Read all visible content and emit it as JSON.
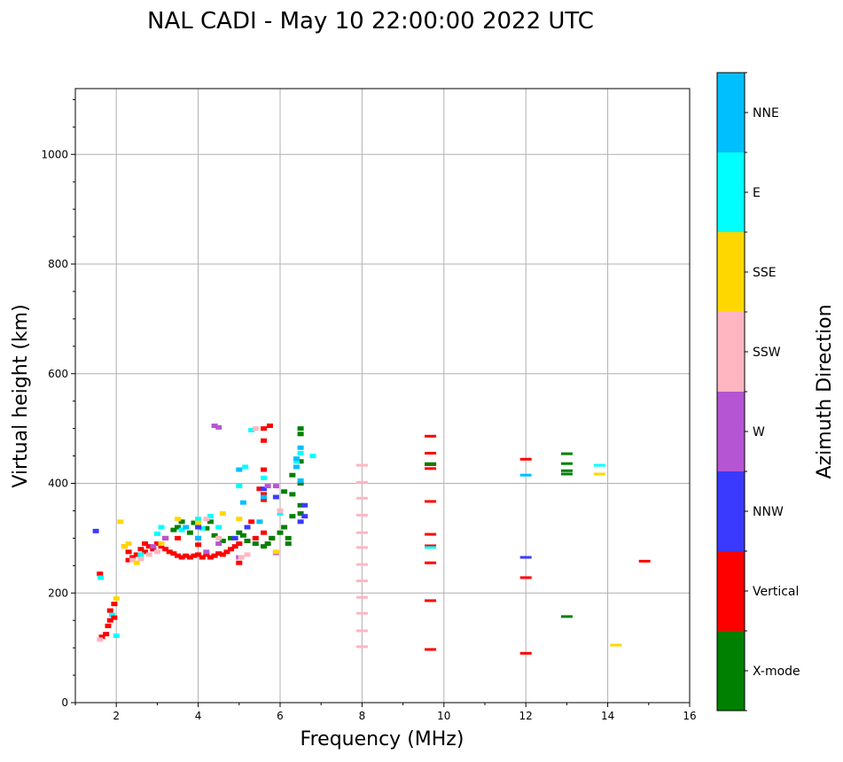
{
  "chart_data": {
    "type": "scatter",
    "title": "NAL CADI - May 10 22:00:00 2022 UTC",
    "xlabel": "Frequency (MHz)",
    "ylabel": "Virtual height (km)",
    "xlim": [
      1,
      16
    ],
    "ylim": [
      0,
      1120
    ],
    "xticks": [
      2,
      4,
      6,
      8,
      10,
      12,
      14,
      16
    ],
    "yticks": [
      0,
      200,
      400,
      600,
      800,
      1000
    ],
    "grid": true,
    "colorbar": {
      "label": "Azimuth Direction",
      "categories": [
        "X-mode",
        "Vertical",
        "NNW",
        "W",
        "SSW",
        "SSE",
        "E",
        "NNE"
      ],
      "colors": [
        "#008000",
        "#ff0000",
        "#3a3aff",
        "#b655d3",
        "#ffb6c1",
        "#ffd700",
        "#00ffff",
        "#00bfff"
      ]
    },
    "points": [
      [
        1.5,
        313,
        2
      ],
      [
        1.6,
        235,
        1
      ],
      [
        1.62,
        228,
        6
      ],
      [
        1.65,
        120,
        1
      ],
      [
        1.6,
        115,
        4
      ],
      [
        1.75,
        125,
        1
      ],
      [
        1.8,
        140,
        1
      ],
      [
        1.85,
        150,
        1
      ],
      [
        1.85,
        168,
        1
      ],
      [
        1.9,
        160,
        6
      ],
      [
        1.95,
        180,
        1
      ],
      [
        1.95,
        155,
        1
      ],
      [
        2.0,
        190,
        5
      ],
      [
        2.0,
        122,
        6
      ],
      [
        2.1,
        330,
        5
      ],
      [
        2.2,
        285,
        1
      ],
      [
        2.3,
        275,
        1
      ],
      [
        2.4,
        265,
        1
      ],
      [
        2.5,
        270,
        1
      ],
      [
        2.6,
        280,
        1
      ],
      [
        2.7,
        275,
        1
      ],
      [
        2.8,
        285,
        1
      ],
      [
        2.9,
        280,
        1
      ],
      [
        3.0,
        290,
        1
      ],
      [
        3.1,
        285,
        1
      ],
      [
        3.2,
        280,
        1
      ],
      [
        3.3,
        275,
        1
      ],
      [
        3.4,
        272,
        1
      ],
      [
        3.5,
        268,
        1
      ],
      [
        3.6,
        265,
        1
      ],
      [
        3.7,
        268,
        1
      ],
      [
        3.8,
        265,
        1
      ],
      [
        3.9,
        268,
        1
      ],
      [
        4.0,
        270,
        1
      ],
      [
        4.1,
        265,
        1
      ],
      [
        4.2,
        270,
        1
      ],
      [
        4.3,
        265,
        1
      ],
      [
        4.4,
        268,
        1
      ],
      [
        4.5,
        272,
        1
      ],
      [
        4.6,
        270,
        1
      ],
      [
        4.7,
        275,
        1
      ],
      [
        4.8,
        280,
        1
      ],
      [
        4.9,
        285,
        1
      ],
      [
        5.0,
        290,
        1
      ],
      [
        5.0,
        255,
        1
      ],
      [
        5.2,
        295,
        1
      ],
      [
        5.4,
        300,
        1
      ],
      [
        5.6,
        310,
        1
      ],
      [
        5.6,
        370,
        1
      ],
      [
        5.6,
        380,
        1
      ],
      [
        5.6,
        500,
        1
      ],
      [
        5.6,
        478,
        1
      ],
      [
        5.5,
        390,
        1
      ],
      [
        5.75,
        505,
        1
      ],
      [
        5.8,
        300,
        1
      ],
      [
        5.3,
        330,
        1
      ],
      [
        5.6,
        425,
        1
      ],
      [
        4.0,
        288,
        1
      ],
      [
        3.5,
        300,
        1
      ],
      [
        3.2,
        300,
        1
      ],
      [
        2.7,
        290,
        1
      ],
      [
        2.3,
        260,
        1
      ],
      [
        3.5,
        320,
        0
      ],
      [
        3.6,
        330,
        0
      ],
      [
        3.8,
        310,
        0
      ],
      [
        4.0,
        300,
        0
      ],
      [
        4.2,
        318,
        0
      ],
      [
        4.4,
        305,
        0
      ],
      [
        4.6,
        295,
        0
      ],
      [
        4.8,
        300,
        0
      ],
      [
        5.0,
        310,
        0
      ],
      [
        5.2,
        295,
        0
      ],
      [
        5.4,
        290,
        0
      ],
      [
        5.6,
        285,
        0
      ],
      [
        5.8,
        300,
        0
      ],
      [
        6.0,
        310,
        0
      ],
      [
        6.1,
        320,
        0
      ],
      [
        6.2,
        300,
        0
      ],
      [
        6.2,
        290,
        0
      ],
      [
        6.1,
        385,
        0
      ],
      [
        6.3,
        340,
        0
      ],
      [
        6.5,
        500,
        0
      ],
      [
        6.5,
        490,
        0
      ],
      [
        6.5,
        440,
        0
      ],
      [
        6.5,
        400,
        0
      ],
      [
        6.5,
        360,
        0
      ],
      [
        6.5,
        345,
        0
      ],
      [
        6.3,
        380,
        0
      ],
      [
        6.3,
        415,
        0
      ],
      [
        6.0,
        350,
        0
      ],
      [
        5.7,
        290,
        0
      ],
      [
        4.3,
        330,
        0
      ],
      [
        3.9,
        328,
        0
      ],
      [
        3.4,
        315,
        0
      ],
      [
        5.1,
        305,
        0
      ],
      [
        3.1,
        320,
        6
      ],
      [
        3.6,
        315,
        6
      ],
      [
        4.1,
        318,
        6
      ],
      [
        4.0,
        335,
        6
      ],
      [
        4.5,
        320,
        6
      ],
      [
        5.0,
        395,
        6
      ],
      [
        5.15,
        430,
        6
      ],
      [
        5.6,
        410,
        6
      ],
      [
        5.3,
        497,
        6
      ],
      [
        6.0,
        345,
        6
      ],
      [
        6.5,
        455,
        6
      ],
      [
        6.8,
        450,
        6
      ],
      [
        6.4,
        440,
        6
      ],
      [
        4.3,
        340,
        6
      ],
      [
        2.6,
        270,
        6
      ],
      [
        3.0,
        308,
        6
      ],
      [
        5.0,
        425,
        7
      ],
      [
        5.1,
        365,
        7
      ],
      [
        6.5,
        465,
        7
      ],
      [
        6.4,
        445,
        7
      ],
      [
        6.4,
        430,
        7
      ],
      [
        5.6,
        375,
        7
      ],
      [
        4.0,
        300,
        7
      ],
      [
        3.7,
        320,
        7
      ],
      [
        5.5,
        330,
        7
      ],
      [
        6.5,
        405,
        7
      ],
      [
        6.6,
        360,
        2
      ],
      [
        6.6,
        340,
        2
      ],
      [
        5.6,
        390,
        2
      ],
      [
        5.9,
        375,
        2
      ],
      [
        5.2,
        320,
        2
      ],
      [
        4.9,
        300,
        2
      ],
      [
        4.0,
        320,
        2
      ],
      [
        6.5,
        330,
        2
      ],
      [
        4.4,
        505,
        3
      ],
      [
        4.5,
        502,
        3
      ],
      [
        5.9,
        395,
        3
      ],
      [
        5.7,
        395,
        3
      ],
      [
        4.5,
        290,
        3
      ],
      [
        3.2,
        300,
        3
      ],
      [
        5.0,
        265,
        3
      ],
      [
        5.9,
        273,
        3
      ],
      [
        4.2,
        275,
        3
      ],
      [
        2.9,
        285,
        3
      ],
      [
        2.4,
        260,
        4
      ],
      [
        2.6,
        262,
        4
      ],
      [
        3.0,
        275,
        4
      ],
      [
        4.5,
        300,
        4
      ],
      [
        5.05,
        265,
        4
      ],
      [
        5.4,
        500,
        4
      ],
      [
        4.2,
        335,
        4
      ],
      [
        5.2,
        270,
        4
      ],
      [
        6.0,
        350,
        4
      ],
      [
        2.8,
        270,
        4
      ],
      [
        2.2,
        285,
        5
      ],
      [
        2.5,
        255,
        5
      ],
      [
        3.5,
        335,
        5
      ],
      [
        4.0,
        328,
        5
      ],
      [
        4.6,
        345,
        5
      ],
      [
        5.0,
        335,
        5
      ],
      [
        5.9,
        275,
        5
      ],
      [
        2.3,
        290,
        5
      ],
      [
        3.1,
        290,
        5
      ],
      [
        8.0,
        433,
        4
      ],
      [
        8.0,
        402,
        4
      ],
      [
        8.0,
        373,
        4
      ],
      [
        8.0,
        342,
        4
      ],
      [
        8.0,
        310,
        4
      ],
      [
        8.0,
        283,
        4
      ],
      [
        8.0,
        252,
        4
      ],
      [
        8.0,
        222,
        4
      ],
      [
        8.0,
        192,
        4
      ],
      [
        8.0,
        163,
        4
      ],
      [
        8.0,
        131,
        4
      ],
      [
        8.0,
        102,
        4
      ],
      [
        9.67,
        486,
        1
      ],
      [
        9.67,
        455,
        1
      ],
      [
        9.67,
        434,
        1
      ],
      [
        9.67,
        427,
        1
      ],
      [
        9.67,
        367,
        1
      ],
      [
        9.67,
        307,
        1
      ],
      [
        9.67,
        286,
        1
      ],
      [
        9.67,
        283,
        6
      ],
      [
        9.67,
        255,
        1
      ],
      [
        9.67,
        186,
        1
      ],
      [
        9.67,
        97,
        1
      ],
      [
        9.67,
        436,
        0
      ],
      [
        12.0,
        444,
        1
      ],
      [
        12.0,
        415,
        7
      ],
      [
        12.0,
        265,
        2
      ],
      [
        12.0,
        228,
        1
      ],
      [
        12.0,
        90,
        1
      ],
      [
        13.0,
        454,
        0
      ],
      [
        13.0,
        436,
        0
      ],
      [
        13.0,
        423,
        0
      ],
      [
        13.0,
        417,
        0
      ],
      [
        13.0,
        157,
        0
      ],
      [
        13.8,
        433,
        6
      ],
      [
        13.8,
        417,
        5
      ],
      [
        14.2,
        105,
        5
      ],
      [
        14.9,
        258,
        1
      ]
    ]
  }
}
